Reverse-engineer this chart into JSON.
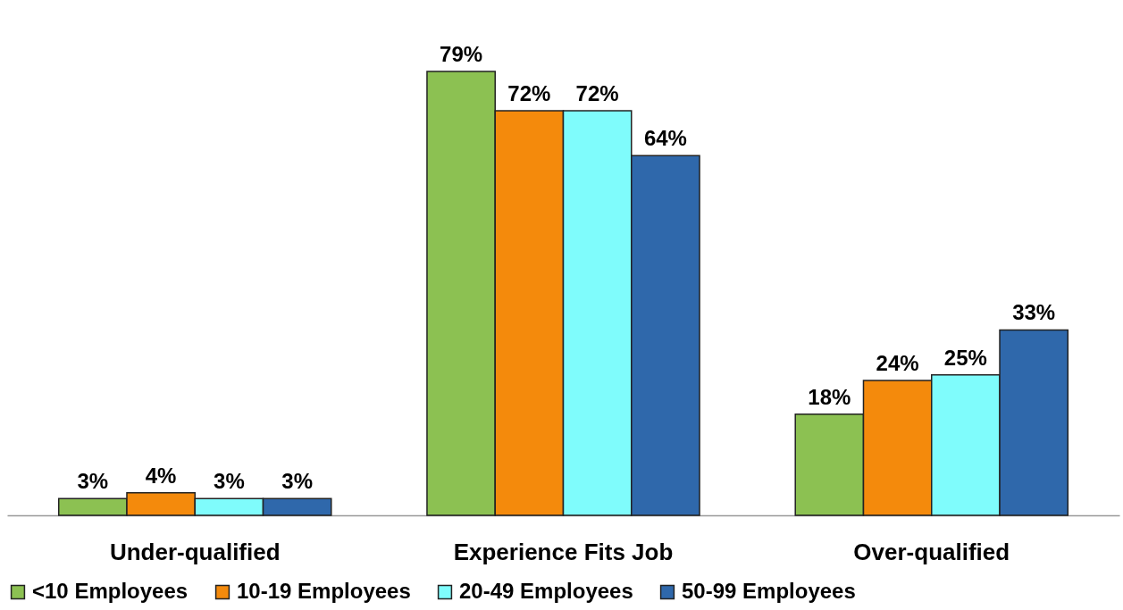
{
  "chart_data": {
    "type": "bar",
    "categories": [
      "Under-qualified",
      "Experience Fits Job",
      "Over-qualified"
    ],
    "series": [
      {
        "name": "<10 Employees",
        "color": "#8cc152",
        "values": [
          3,
          79,
          18
        ],
        "value_labels": [
          "3%",
          "79%",
          "18%"
        ]
      },
      {
        "name": "10-19 Employees",
        "color": "#f48a0c",
        "values": [
          4,
          72,
          24
        ],
        "value_labels": [
          "4%",
          "72%",
          "24%"
        ]
      },
      {
        "name": "20-49 Employees",
        "color": "#7ffcfc",
        "values": [
          3,
          72,
          25
        ],
        "value_labels": [
          "3%",
          "72%",
          "25%"
        ]
      },
      {
        "name": "50-99 Employees",
        "color": "#2f68ab",
        "values": [
          3,
          64,
          33
        ],
        "value_labels": [
          "3%",
          "64%",
          "33%"
        ]
      }
    ],
    "legend": "bottom",
    "grid": false
  }
}
